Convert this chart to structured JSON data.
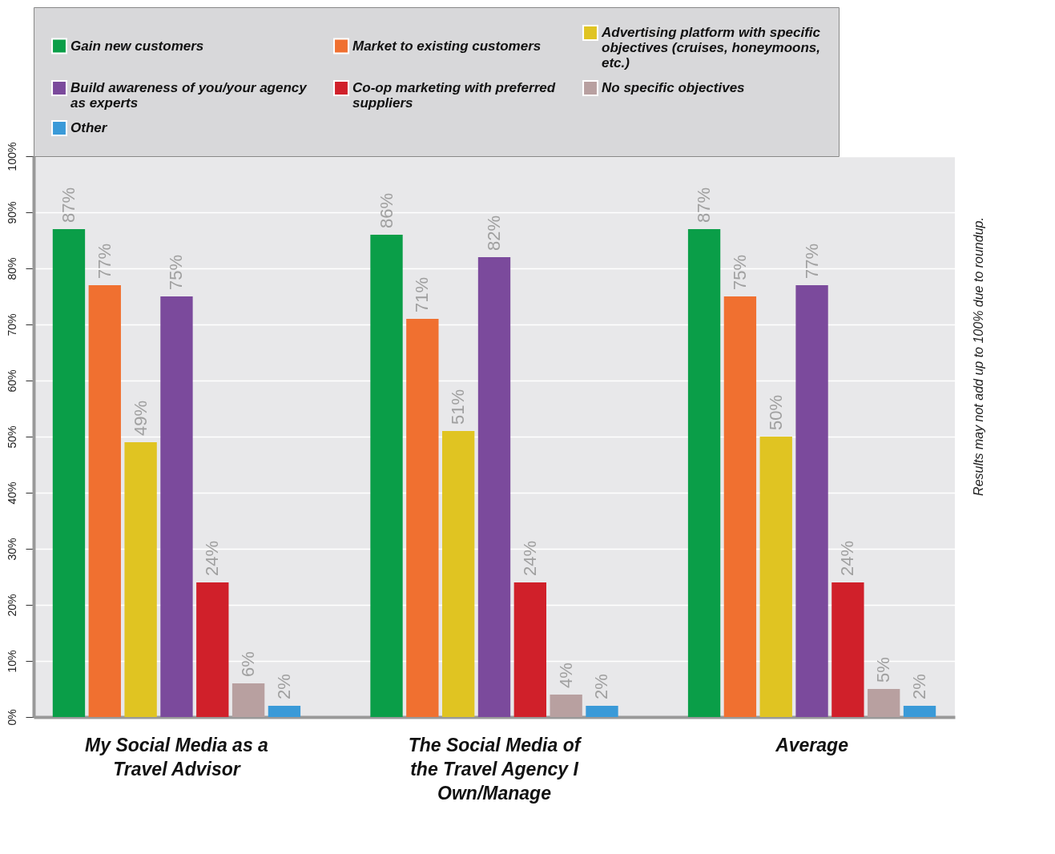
{
  "chart_data": {
    "type": "bar",
    "categories": [
      "My Social Media as a Travel Advisor",
      "The Social Media of the Travel Agency I Own/Manage",
      "Average"
    ],
    "series": [
      {
        "name": "Gain new customers",
        "color": "#0a9e48",
        "values": [
          87,
          86,
          87
        ],
        "value_labels": [
          "87%",
          "86%",
          "87%"
        ]
      },
      {
        "name": "Market to existing customers",
        "color": "#f07030",
        "values": [
          77,
          71,
          75
        ],
        "value_labels": [
          "77%",
          "71%",
          "75%"
        ]
      },
      {
        "name": "Advertising platform with specific objectives (cruises, honeymoons, etc.)",
        "color": "#e0c422",
        "values": [
          49,
          51,
          50
        ],
        "value_labels": [
          "49%",
          "51%",
          "50%"
        ]
      },
      {
        "name": "Build awareness of you/your agency as experts",
        "color": "#7b4a9c",
        "values": [
          75,
          82,
          77
        ],
        "value_labels": [
          "75%",
          "82%",
          "77%"
        ]
      },
      {
        "name": "Co-op marketing with preferred suppliers",
        "color": "#d0202a",
        "values": [
          24,
          24,
          24
        ],
        "value_labels": [
          "24%",
          "24%",
          "24%"
        ]
      },
      {
        "name": "No specific objectives",
        "color": "#b8a0a0",
        "values": [
          6,
          4,
          5
        ],
        "value_labels": [
          "6%",
          "4%",
          "5%"
        ]
      },
      {
        "name": "Other",
        "color": "#3a9ad8",
        "values": [
          2,
          2,
          2
        ],
        "value_labels": [
          "2%",
          "2%",
          "2%"
        ]
      }
    ],
    "ylim": [
      0,
      100
    ],
    "yticks": [
      {
        "value": 0,
        "label": "0%"
      },
      {
        "value": 10,
        "label": "10%"
      },
      {
        "value": 20,
        "label": "20%"
      },
      {
        "value": 30,
        "label": "30%"
      },
      {
        "value": 40,
        "label": "40%"
      },
      {
        "value": 50,
        "label": "50%"
      },
      {
        "value": 60,
        "label": "60%"
      },
      {
        "value": 70,
        "label": "70%"
      },
      {
        "value": 80,
        "label": "80%"
      },
      {
        "value": 90,
        "label": "90%"
      },
      {
        "value": 100,
        "label": "100%"
      }
    ],
    "grid": "y",
    "legend": "top",
    "annotations": [
      "Results may not add up to 100% due to roundup."
    ]
  }
}
